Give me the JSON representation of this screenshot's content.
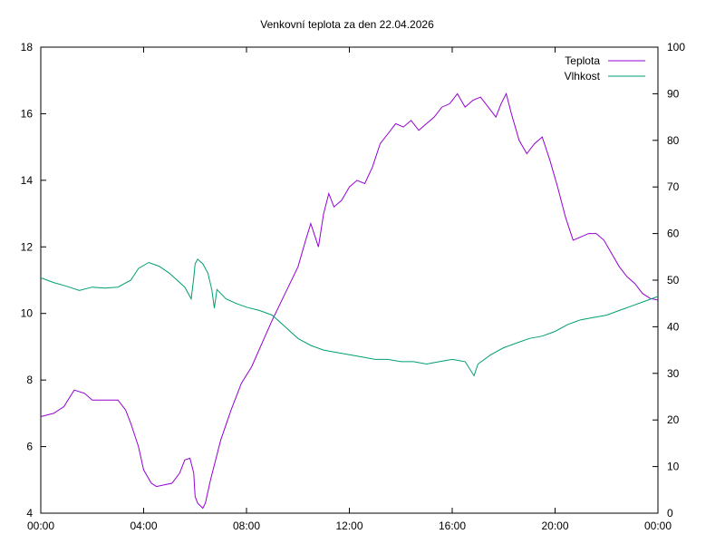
{
  "chart_data": {
    "type": "line",
    "title": "Venkovní teplota za den 22.04.2026",
    "x_ticks": [
      "00:00",
      "04:00",
      "08:00",
      "12:00",
      "16:00",
      "20:00",
      "00:00"
    ],
    "x_range_hours": [
      0,
      24
    ],
    "y_left": {
      "range": [
        4,
        18
      ],
      "ticks": [
        4,
        6,
        8,
        10,
        12,
        14,
        16,
        18
      ]
    },
    "y_right": {
      "range": [
        0,
        100
      ],
      "ticks": [
        0,
        10,
        20,
        30,
        40,
        50,
        60,
        70,
        80,
        90,
        100
      ]
    },
    "grid": false,
    "legend_position": "top-right",
    "series": [
      {
        "name": "Teplota",
        "axis": "left",
        "color": "#9400d3",
        "points": [
          [
            0,
            6.9
          ],
          [
            0.5,
            7.0
          ],
          [
            0.9,
            7.2
          ],
          [
            1.3,
            7.7
          ],
          [
            1.7,
            7.6
          ],
          [
            2.0,
            7.4
          ],
          [
            2.5,
            7.4
          ],
          [
            3.0,
            7.4
          ],
          [
            3.3,
            7.1
          ],
          [
            3.5,
            6.7
          ],
          [
            3.8,
            6.0
          ],
          [
            4.0,
            5.3
          ],
          [
            4.3,
            4.9
          ],
          [
            4.5,
            4.8
          ],
          [
            4.8,
            4.85
          ],
          [
            5.1,
            4.9
          ],
          [
            5.4,
            5.2
          ],
          [
            5.6,
            5.6
          ],
          [
            5.8,
            5.65
          ],
          [
            5.95,
            5.2
          ],
          [
            6.0,
            4.5
          ],
          [
            6.1,
            4.3
          ],
          [
            6.3,
            4.15
          ],
          [
            6.4,
            4.3
          ],
          [
            6.6,
            5.0
          ],
          [
            7.0,
            6.2
          ],
          [
            7.4,
            7.1
          ],
          [
            7.8,
            7.9
          ],
          [
            8.2,
            8.4
          ],
          [
            8.6,
            9.1
          ],
          [
            9.0,
            9.8
          ],
          [
            9.5,
            10.6
          ],
          [
            10.0,
            11.4
          ],
          [
            10.3,
            12.2
          ],
          [
            10.5,
            12.7
          ],
          [
            10.8,
            12.0
          ],
          [
            11.0,
            13.0
          ],
          [
            11.2,
            13.6
          ],
          [
            11.4,
            13.2
          ],
          [
            11.7,
            13.4
          ],
          [
            12.0,
            13.8
          ],
          [
            12.3,
            14.0
          ],
          [
            12.6,
            13.9
          ],
          [
            12.9,
            14.4
          ],
          [
            13.2,
            15.1
          ],
          [
            13.5,
            15.4
          ],
          [
            13.8,
            15.7
          ],
          [
            14.1,
            15.6
          ],
          [
            14.4,
            15.8
          ],
          [
            14.7,
            15.5
          ],
          [
            15.0,
            15.7
          ],
          [
            15.3,
            15.9
          ],
          [
            15.6,
            16.2
          ],
          [
            15.9,
            16.3
          ],
          [
            16.2,
            16.6
          ],
          [
            16.5,
            16.2
          ],
          [
            16.8,
            16.4
          ],
          [
            17.1,
            16.5
          ],
          [
            17.4,
            16.2
          ],
          [
            17.7,
            15.9
          ],
          [
            17.9,
            16.3
          ],
          [
            18.1,
            16.6
          ],
          [
            18.3,
            16.0
          ],
          [
            18.6,
            15.2
          ],
          [
            18.9,
            14.8
          ],
          [
            19.2,
            15.1
          ],
          [
            19.5,
            15.3
          ],
          [
            19.8,
            14.6
          ],
          [
            20.1,
            13.8
          ],
          [
            20.4,
            12.9
          ],
          [
            20.7,
            12.2
          ],
          [
            21.0,
            12.3
          ],
          [
            21.3,
            12.4
          ],
          [
            21.6,
            12.4
          ],
          [
            21.9,
            12.2
          ],
          [
            22.2,
            11.8
          ],
          [
            22.5,
            11.4
          ],
          [
            22.8,
            11.1
          ],
          [
            23.1,
            10.9
          ],
          [
            23.4,
            10.6
          ],
          [
            23.7,
            10.45
          ],
          [
            24.0,
            10.4
          ]
        ]
      },
      {
        "name": "Vlhkost",
        "axis": "right",
        "color": "#009e73",
        "points": [
          [
            0,
            50.5
          ],
          [
            0.5,
            49.5
          ],
          [
            1.0,
            48.7
          ],
          [
            1.5,
            47.8
          ],
          [
            2.0,
            48.5
          ],
          [
            2.5,
            48.3
          ],
          [
            3.0,
            48.5
          ],
          [
            3.5,
            50.0
          ],
          [
            3.8,
            52.5
          ],
          [
            4.2,
            53.8
          ],
          [
            4.6,
            53.0
          ],
          [
            5.0,
            51.5
          ],
          [
            5.3,
            50.0
          ],
          [
            5.6,
            48.5
          ],
          [
            5.85,
            46.0
          ],
          [
            5.95,
            50.5
          ],
          [
            6.0,
            53.5
          ],
          [
            6.1,
            54.5
          ],
          [
            6.3,
            53.5
          ],
          [
            6.5,
            51.5
          ],
          [
            6.65,
            48.0
          ],
          [
            6.75,
            44.0
          ],
          [
            6.85,
            48.0
          ],
          [
            7.2,
            46.0
          ],
          [
            7.6,
            45.0
          ],
          [
            8.0,
            44.2
          ],
          [
            8.5,
            43.5
          ],
          [
            9.0,
            42.5
          ],
          [
            9.5,
            40.0
          ],
          [
            10.0,
            37.5
          ],
          [
            10.5,
            36.0
          ],
          [
            11.0,
            35.0
          ],
          [
            11.5,
            34.5
          ],
          [
            12.0,
            34.0
          ],
          [
            12.5,
            33.5
          ],
          [
            13.0,
            33.0
          ],
          [
            13.5,
            33.0
          ],
          [
            14.0,
            32.5
          ],
          [
            14.5,
            32.5
          ],
          [
            15.0,
            32.0
          ],
          [
            15.5,
            32.5
          ],
          [
            16.0,
            33.0
          ],
          [
            16.5,
            32.5
          ],
          [
            16.85,
            29.5
          ],
          [
            17.0,
            32.0
          ],
          [
            17.5,
            34.0
          ],
          [
            18.0,
            35.5
          ],
          [
            18.5,
            36.5
          ],
          [
            19.0,
            37.5
          ],
          [
            19.5,
            38.0
          ],
          [
            20.0,
            39.0
          ],
          [
            20.5,
            40.5
          ],
          [
            21.0,
            41.5
          ],
          [
            21.5,
            42.0
          ],
          [
            22.0,
            42.5
          ],
          [
            22.5,
            43.5
          ],
          [
            23.0,
            44.5
          ],
          [
            23.5,
            45.5
          ],
          [
            24.0,
            46.5
          ]
        ]
      }
    ]
  }
}
